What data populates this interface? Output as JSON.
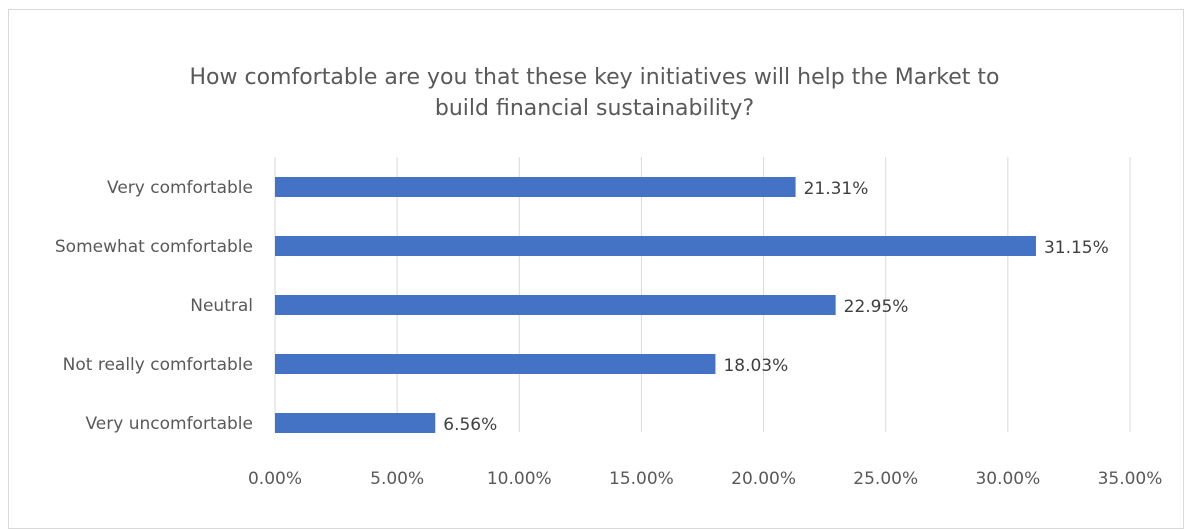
{
  "chart_data": {
    "type": "bar",
    "orientation": "horizontal",
    "title_lines": [
      "How comfortable are you that these key initiatives will help the Market to",
      "build financial sustainability?"
    ],
    "categories": [
      "Very comfortable",
      "Somewhat comfortable",
      "Neutral",
      "Not really comfortable",
      "Very uncomfortable"
    ],
    "values": [
      21.31,
      31.15,
      22.95,
      18.03,
      6.56
    ],
    "data_labels": [
      "21.31%",
      "31.15%",
      "22.95%",
      "18.03%",
      "6.56%"
    ],
    "xlim": [
      0,
      35
    ],
    "xticks": [
      0,
      5,
      10,
      15,
      20,
      25,
      30,
      35
    ],
    "xtick_labels": [
      "0.00%",
      "5.00%",
      "10.00%",
      "15.00%",
      "20.00%",
      "25.00%",
      "30.00%",
      "35.00%"
    ],
    "xlabel": "",
    "ylabel": "",
    "grid": "vertical",
    "legend": "none",
    "colors": {
      "bar": "#4472C4",
      "grid": "#d9d9d9",
      "text": "#595959",
      "frame": "#d9d9d9"
    }
  }
}
